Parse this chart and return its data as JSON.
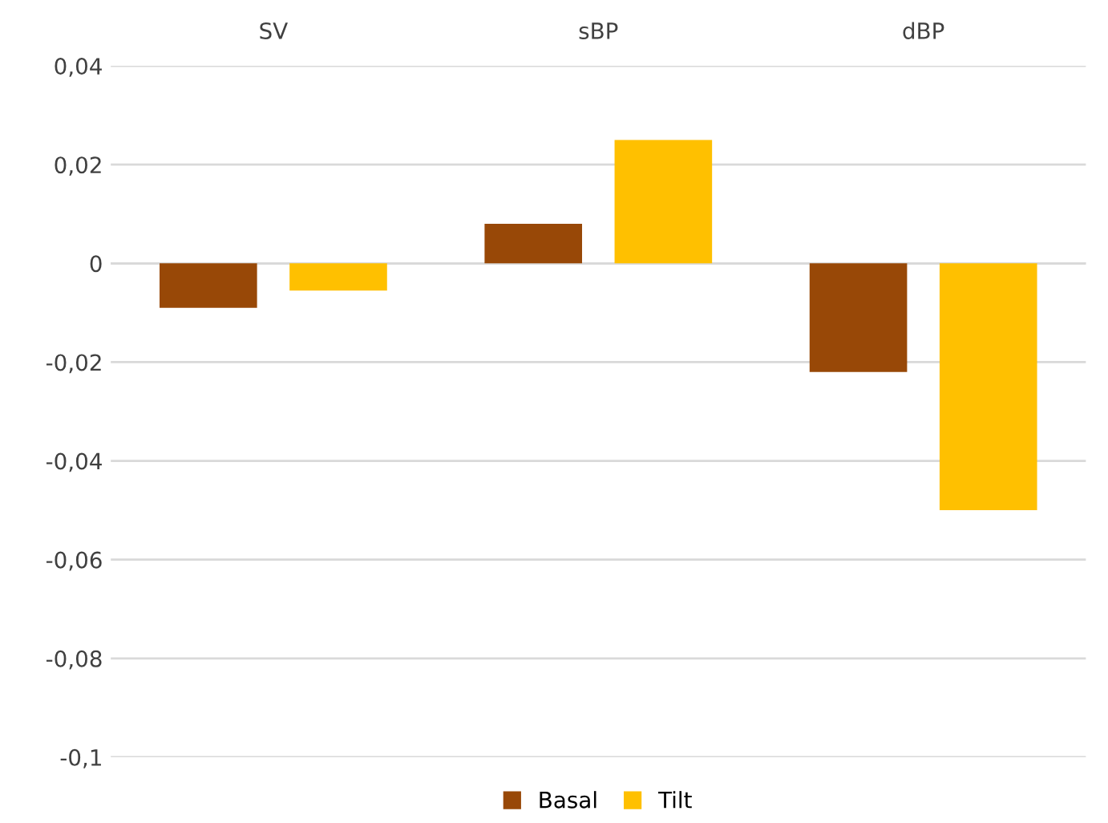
{
  "chart_data": {
    "type": "bar",
    "categories": [
      "SV",
      "sBP",
      "dBP"
    ],
    "series": [
      {
        "name": "Basal",
        "color": "#984807",
        "values": [
          -0.009,
          0.008,
          -0.022
        ]
      },
      {
        "name": "Tilt",
        "color": "#ffc000",
        "values": [
          -0.0055,
          0.025,
          -0.05
        ]
      }
    ],
    "ylim": [
      -0.1,
      0.04
    ],
    "yticks": [
      {
        "value": -0.1,
        "label": "-0,1"
      },
      {
        "value": -0.08,
        "label": "-0,08"
      },
      {
        "value": -0.06,
        "label": "-0,06"
      },
      {
        "value": -0.04,
        "label": "-0,04"
      },
      {
        "value": -0.02,
        "label": "-0,02"
      },
      0,
      {
        "value": 0.02,
        "label": "0,02"
      },
      {
        "value": 0.04,
        "label": "0,04"
      }
    ],
    "grid": "y",
    "legend": "bottom"
  }
}
